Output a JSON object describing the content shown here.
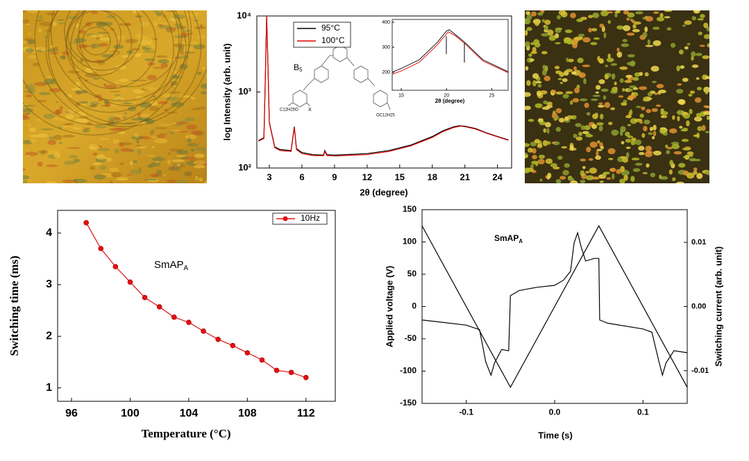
{
  "chart_data": [
    {
      "type": "line",
      "yscale": "log",
      "xlabel": "2θ (degree)",
      "ylabel": "log Intensity (arb. unit)",
      "xlim": [
        1.85,
        25.3
      ],
      "ylim": [
        100,
        10000
      ],
      "xticks": [
        3,
        6,
        9,
        12,
        15,
        18,
        21,
        24
      ],
      "yticks": [
        {
          "value": 100,
          "label": "10²"
        },
        {
          "value": 1000,
          "label": "10³"
        },
        {
          "value": 10000,
          "label": "10⁴"
        }
      ],
      "legend": true,
      "series": [
        {
          "name": "95°C",
          "color": "#000000",
          "x": [
            2.0,
            2.5,
            2.65,
            2.75,
            2.85,
            3.0,
            3.5,
            4,
            5,
            5.3,
            5.5,
            6,
            7,
            8,
            8.1,
            8.3,
            9,
            10,
            12,
            14,
            16,
            18,
            19,
            20,
            20.5,
            21,
            22,
            23,
            24,
            25
          ],
          "values": [
            230,
            250,
            2000,
            10000,
            3000,
            400,
            190,
            175,
            170,
            350,
            180,
            160,
            150,
            148,
            170,
            150,
            148,
            150,
            155,
            170,
            200,
            260,
            310,
            350,
            360,
            355,
            330,
            290,
            260,
            235
          ]
        },
        {
          "name": "100°C",
          "color": "#e00000",
          "x": [
            2.0,
            2.5,
            2.65,
            2.75,
            2.85,
            3.0,
            3.5,
            4,
            5,
            5.3,
            5.5,
            6,
            7,
            8,
            8.1,
            8.3,
            9,
            10,
            12,
            14,
            16,
            18,
            19,
            20,
            20.6,
            21,
            22,
            23,
            24,
            25
          ],
          "values": [
            225,
            245,
            1900,
            10000,
            2900,
            390,
            185,
            170,
            165,
            340,
            175,
            155,
            146,
            145,
            165,
            146,
            144,
            146,
            150,
            165,
            195,
            253,
            302,
            342,
            355,
            350,
            325,
            287,
            257,
            232
          ]
        }
      ]
    },
    {
      "type": "line",
      "xlabel": "2θ (degree)",
      "xlim": [
        14,
        26.8
      ],
      "ylim": [
        128,
        411
      ],
      "xticks": [
        15,
        20,
        25
      ],
      "yticks": [
        200,
        300,
        400
      ],
      "series": [
        {
          "color": "#000000",
          "x": [
            14,
            15,
            17,
            19,
            20,
            20.3,
            21,
            22,
            24,
            26.8
          ],
          "values": [
            200,
            215,
            250,
            320,
            365,
            370,
            350,
            320,
            250,
            202
          ]
        },
        {
          "color": "#e00000",
          "x": [
            14,
            15,
            17,
            19,
            20.2,
            21,
            22,
            24,
            26.8
          ],
          "values": [
            192,
            205,
            240,
            310,
            362,
            345,
            315,
            245,
            198
          ]
        }
      ]
    },
    {
      "type": "line",
      "xlabel": "Temperature (°C)",
      "ylabel": "Switching time (ms)",
      "annotation": {
        "text": "SmAP",
        "subscript": "A"
      },
      "xlim": [
        95.05,
        114.0
      ],
      "ylim": [
        0.74,
        4.44
      ],
      "xticks": [
        96,
        100,
        104,
        108,
        112
      ],
      "yticks": [
        1,
        2,
        3,
        4
      ],
      "legend": true,
      "x": [
        97,
        98,
        99,
        100,
        101,
        102,
        103,
        104,
        105,
        106,
        107,
        108,
        109,
        110,
        111,
        112
      ],
      "series": [
        {
          "name": "10Hz",
          "color": "#e01010",
          "marker": "circle",
          "values": [
            4.2,
            3.7,
            3.35,
            3.05,
            2.75,
            2.57,
            2.37,
            2.27,
            2.1,
            1.94,
            1.82,
            1.68,
            1.54,
            1.34,
            1.3,
            1.2
          ]
        }
      ]
    },
    {
      "type": "line",
      "xlabel": "Time (s)",
      "ylabel": "Applied voltage (V)",
      "y2label": "Switching current (arb. unit)",
      "annotation": {
        "text": "SmAP",
        "subscript": "A"
      },
      "xlim": [
        -0.15,
        0.15
      ],
      "ylim": [
        -150,
        150
      ],
      "y2lim": [
        -0.0151,
        0.0151
      ],
      "xticks": [
        -0.1,
        {
          "value": 0,
          "label": "0.0"
        },
        0.1
      ],
      "yticks": [
        -150,
        -100,
        -50,
        0,
        50,
        100,
        150
      ],
      "y2ticks": [
        -0.01,
        {
          "value": 0,
          "label": "0.00"
        },
        0.01
      ],
      "series": [
        {
          "color": "#000000",
          "x": [
            -0.15,
            -0.05,
            0.05,
            0.15
          ],
          "values": [
            125,
            -125,
            125,
            -125
          ]
        },
        {
          "color": "#000000",
          "axis": "y2",
          "x": [
            -0.15,
            -0.1,
            -0.085,
            -0.078,
            -0.072,
            -0.068,
            -0.06,
            -0.052,
            -0.05,
            -0.04,
            -0.02,
            0,
            0.01,
            0.018,
            0.022,
            0.026,
            0.03,
            0.035,
            0.045,
            0.05,
            0.051,
            0.06,
            0.1,
            0.11,
            0.118,
            0.122,
            0.126,
            0.135,
            0.15
          ],
          "values": [
            -0.0021,
            -0.0029,
            -0.0036,
            -0.0086,
            -0.0107,
            -0.0088,
            -0.0067,
            -0.0069,
            0.0017,
            0.0025,
            0.003,
            0.0033,
            0.0041,
            0.0055,
            0.0099,
            0.0115,
            0.0093,
            0.0071,
            0.0075,
            0.0075,
            -0.0021,
            -0.0026,
            -0.0035,
            -0.004,
            -0.0086,
            -0.0107,
            -0.0088,
            -0.0069,
            -0.0072
          ]
        }
      ]
    }
  ],
  "molecule": {
    "label": "B",
    "label_sub": "5",
    "groups": [
      "C12H25O",
      "X",
      "OC12H25"
    ]
  }
}
